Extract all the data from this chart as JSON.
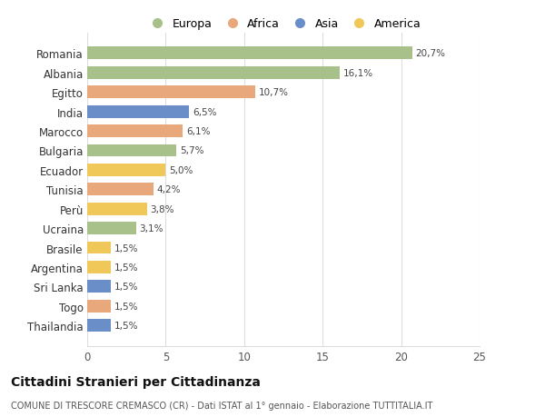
{
  "countries": [
    "Romania",
    "Albania",
    "Egitto",
    "India",
    "Marocco",
    "Bulgaria",
    "Ecuador",
    "Tunisia",
    "Perù",
    "Ucraina",
    "Brasile",
    "Argentina",
    "Sri Lanka",
    "Togo",
    "Thailandia"
  ],
  "values": [
    20.7,
    16.1,
    10.7,
    6.5,
    6.1,
    5.7,
    5.0,
    4.2,
    3.8,
    3.1,
    1.5,
    1.5,
    1.5,
    1.5,
    1.5
  ],
  "labels": [
    "20,7%",
    "16,1%",
    "10,7%",
    "6,5%",
    "6,1%",
    "5,7%",
    "5,0%",
    "4,2%",
    "3,8%",
    "3,1%",
    "1,5%",
    "1,5%",
    "1,5%",
    "1,5%",
    "1,5%"
  ],
  "continents": [
    "Europa",
    "Europa",
    "Africa",
    "Asia",
    "Africa",
    "Europa",
    "America",
    "Africa",
    "America",
    "Europa",
    "America",
    "America",
    "Asia",
    "Africa",
    "Asia"
  ],
  "continent_colors": {
    "Europa": "#a8c08a",
    "Africa": "#e8a87c",
    "Asia": "#6a8fc8",
    "America": "#f0c85a"
  },
  "legend_order": [
    "Europa",
    "Africa",
    "Asia",
    "America"
  ],
  "xlim": [
    0,
    25
  ],
  "xticks": [
    0,
    5,
    10,
    15,
    20,
    25
  ],
  "title": "Cittadini Stranieri per Cittadinanza",
  "subtitle": "COMUNE DI TRESCORE CREMASCO (CR) - Dati ISTAT al 1° gennaio - Elaborazione TUTTITALIA.IT",
  "bg_color": "#ffffff",
  "grid_color": "#dddddd"
}
